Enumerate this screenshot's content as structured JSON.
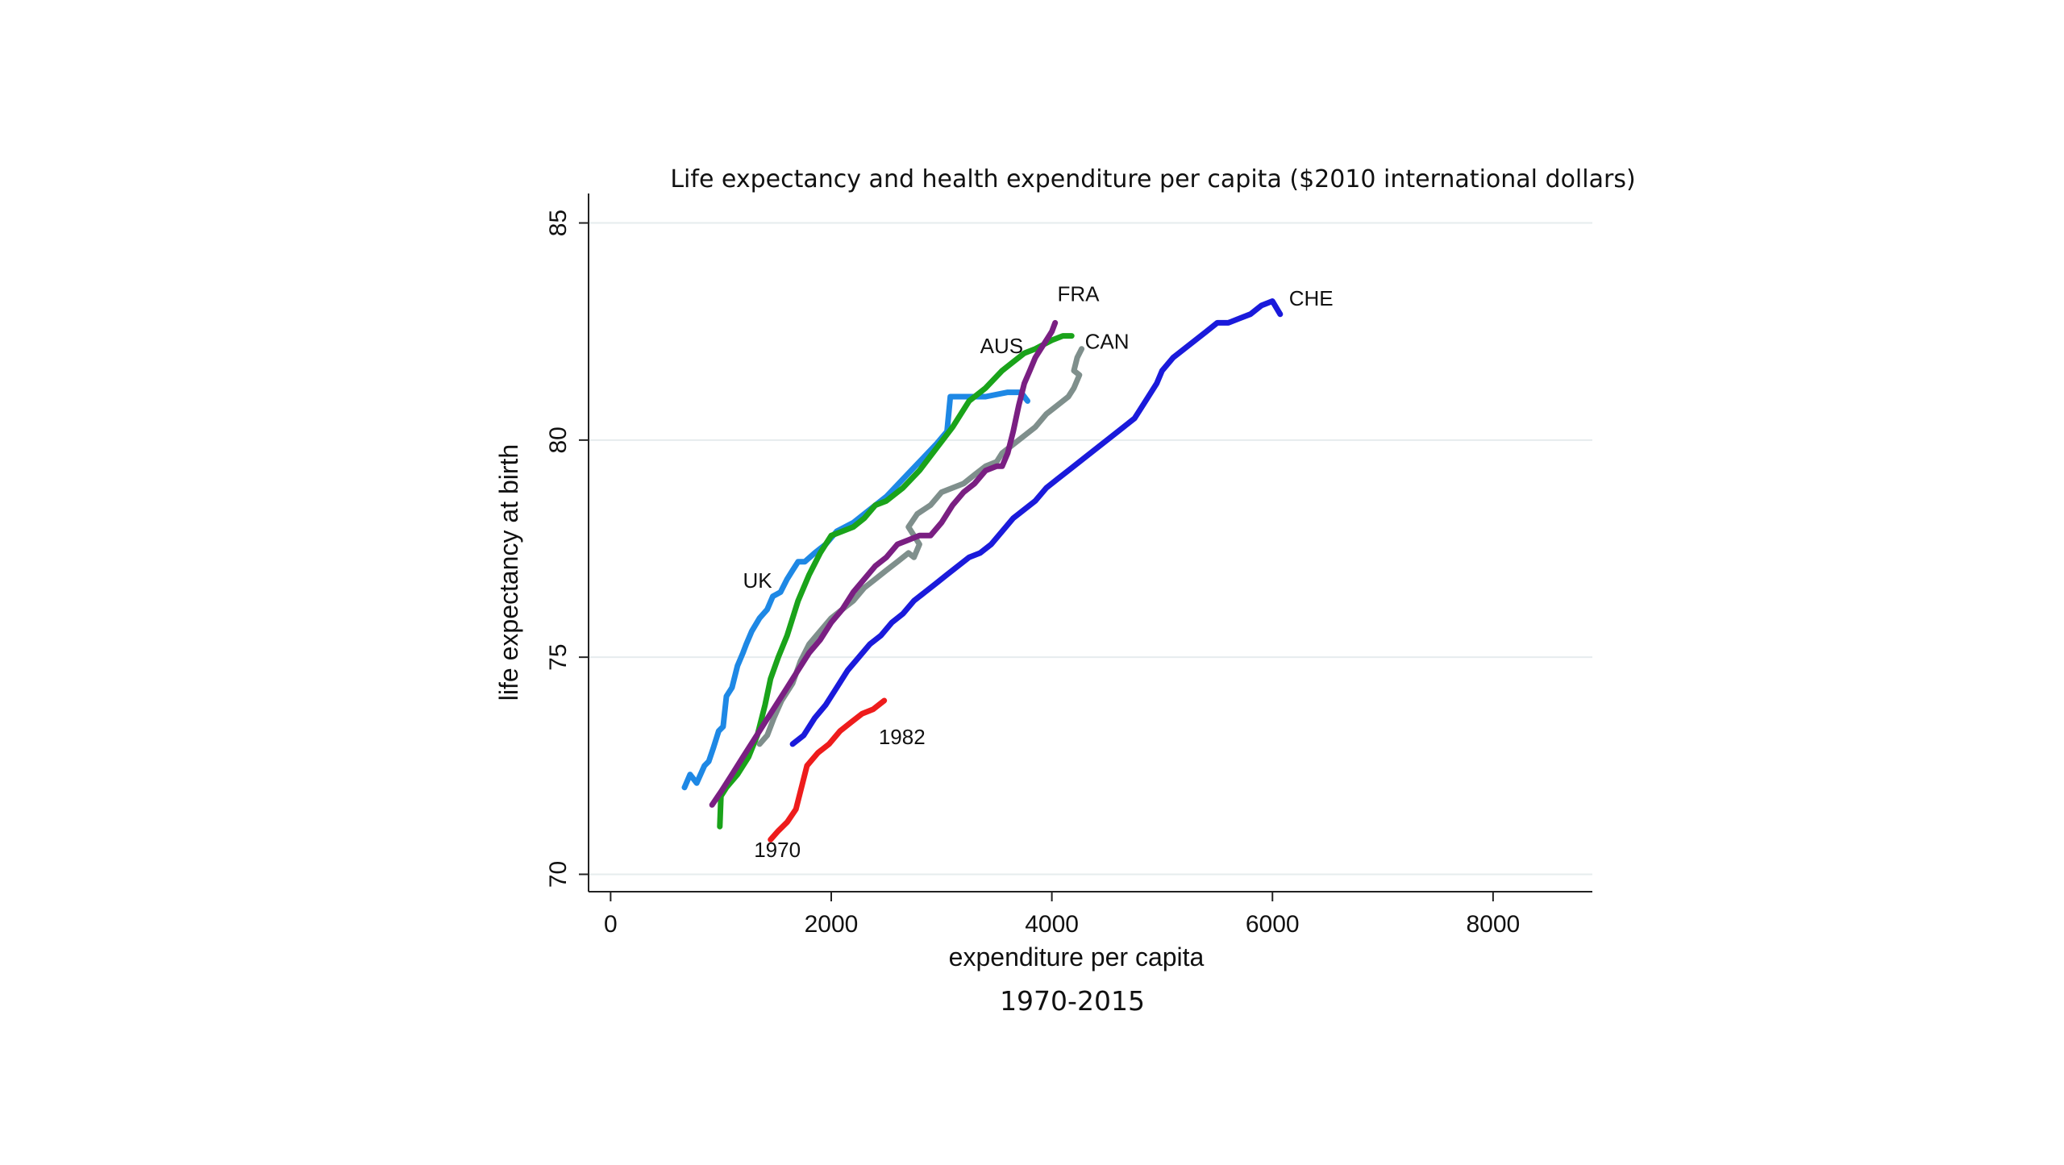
{
  "chart_data": {
    "type": "line",
    "title": "Life expectancy and health expenditure per capita ($2010 international dollars)",
    "xlabel": "expenditure per capita",
    "ylabel": "life expectancy at birth",
    "subtitle": "1970-2015",
    "xlim": [
      -200,
      8900
    ],
    "ylim": [
      69.6,
      85.4
    ],
    "xticks": [
      "0",
      "2000",
      "4000",
      "6000",
      "8000"
    ],
    "xtick_values": [
      0,
      2000,
      4000,
      6000,
      8000
    ],
    "yticks": [
      "70",
      "75",
      "80",
      "85"
    ],
    "ytick_values": [
      70,
      75,
      80,
      85
    ],
    "grid": true,
    "series": [
      {
        "name": "UK",
        "color": "#1e88e5",
        "x": [
          670,
          720,
          780,
          850,
          890,
          930,
          980,
          1020,
          1050,
          1100,
          1150,
          1200,
          1230,
          1280,
          1350,
          1420,
          1470,
          1540,
          1600,
          1650,
          1700,
          1760,
          1850,
          1950,
          2050,
          2200,
          2350,
          2500,
          2650,
          2800,
          2950,
          3050,
          3080,
          3200,
          3400,
          3600,
          3720,
          3780
        ],
        "y": [
          72.0,
          72.3,
          72.1,
          72.5,
          72.6,
          72.9,
          73.3,
          73.4,
          74.1,
          74.3,
          74.8,
          75.1,
          75.3,
          75.6,
          75.9,
          76.1,
          76.4,
          76.5,
          76.8,
          77.0,
          77.2,
          77.2,
          77.4,
          77.6,
          77.9,
          78.1,
          78.4,
          78.7,
          79.1,
          79.5,
          79.9,
          80.2,
          81.0,
          81.0,
          81.0,
          81.1,
          81.1,
          80.9
        ]
      },
      {
        "name": "AUS",
        "color": "#1aa31a",
        "x": [
          990,
          1000,
          1050,
          1150,
          1250,
          1330,
          1400,
          1450,
          1520,
          1600,
          1700,
          1800,
          1900,
          2000,
          2100,
          2200,
          2300,
          2400,
          2500,
          2650,
          2800,
          2950,
          3100,
          3250,
          3400,
          3550,
          3650,
          3750,
          3850,
          4000,
          4100,
          4180
        ],
        "y": [
          71.1,
          71.8,
          72.0,
          72.3,
          72.7,
          73.2,
          73.9,
          74.5,
          75.0,
          75.5,
          76.3,
          76.9,
          77.4,
          77.8,
          77.9,
          78.0,
          78.2,
          78.5,
          78.6,
          78.9,
          79.3,
          79.8,
          80.3,
          80.9,
          81.2,
          81.6,
          81.8,
          82.0,
          82.1,
          82.3,
          82.4,
          82.4
        ]
      },
      {
        "name": "CAN",
        "color": "#7f8f8c",
        "x": [
          1350,
          1420,
          1480,
          1550,
          1650,
          1720,
          1800,
          1900,
          2000,
          2100,
          2200,
          2300,
          2400,
          2500,
          2600,
          2700,
          2750,
          2800,
          2700,
          2780,
          2900,
          3000,
          3100,
          3200,
          3300,
          3400,
          3500,
          3550,
          3650,
          3750,
          3850,
          3950,
          4050,
          4150,
          4200,
          4250,
          4200,
          4230,
          4270
        ],
        "y": [
          73.0,
          73.2,
          73.6,
          74.0,
          74.4,
          74.9,
          75.3,
          75.6,
          75.9,
          76.1,
          76.3,
          76.6,
          76.8,
          77.0,
          77.2,
          77.4,
          77.3,
          77.6,
          78.0,
          78.3,
          78.5,
          78.8,
          78.9,
          79.0,
          79.2,
          79.4,
          79.5,
          79.7,
          79.9,
          80.1,
          80.3,
          80.6,
          80.8,
          81.0,
          81.2,
          81.5,
          81.6,
          81.9,
          82.1
        ]
      },
      {
        "name": "FRA",
        "color": "#7a1f82",
        "x": [
          920,
          1000,
          1100,
          1200,
          1300,
          1400,
          1500,
          1600,
          1700,
          1800,
          1900,
          2000,
          2100,
          2200,
          2300,
          2400,
          2500,
          2600,
          2700,
          2800,
          2900,
          3000,
          3100,
          3200,
          3300,
          3400,
          3500,
          3550,
          3600,
          3650,
          3700,
          3750,
          3800,
          3850,
          3900,
          3950,
          4000,
          4030
        ],
        "y": [
          71.6,
          71.9,
          72.3,
          72.7,
          73.1,
          73.5,
          73.9,
          74.3,
          74.7,
          75.1,
          75.4,
          75.8,
          76.1,
          76.5,
          76.8,
          77.1,
          77.3,
          77.6,
          77.7,
          77.8,
          77.8,
          78.1,
          78.5,
          78.8,
          79.0,
          79.3,
          79.4,
          79.4,
          79.7,
          80.2,
          80.8,
          81.3,
          81.6,
          81.9,
          82.1,
          82.3,
          82.5,
          82.7
        ]
      },
      {
        "name": "CHE",
        "color": "#1a1adb",
        "x": [
          1650,
          1750,
          1850,
          1950,
          2050,
          2150,
          2250,
          2350,
          2450,
          2550,
          2650,
          2750,
          2850,
          2950,
          3050,
          3150,
          3250,
          3350,
          3450,
          3550,
          3650,
          3750,
          3850,
          3950,
          4050,
          4150,
          4300,
          4450,
          4600,
          4750,
          4850,
          4950,
          5000,
          5100,
          5200,
          5300,
          5400,
          5500,
          5600,
          5700,
          5800,
          5900,
          6000,
          6070
        ],
        "y": [
          73.0,
          73.2,
          73.6,
          73.9,
          74.3,
          74.7,
          75.0,
          75.3,
          75.5,
          75.8,
          76.0,
          76.3,
          76.5,
          76.7,
          76.9,
          77.1,
          77.3,
          77.4,
          77.6,
          77.9,
          78.2,
          78.4,
          78.6,
          78.9,
          79.1,
          79.3,
          79.6,
          79.9,
          80.2,
          80.5,
          80.9,
          81.3,
          81.6,
          81.9,
          82.1,
          82.3,
          82.5,
          82.7,
          82.7,
          82.8,
          82.9,
          83.1,
          83.2,
          82.9
        ]
      },
      {
        "name": "1970-1982",
        "color": "#ee1c1c",
        "x": [
          1450,
          1520,
          1600,
          1680,
          1780,
          1880,
          1980,
          2080,
          2180,
          2280,
          2380,
          2480
        ],
        "y": [
          70.8,
          71.0,
          71.2,
          71.5,
          72.5,
          72.8,
          73.0,
          73.3,
          73.5,
          73.7,
          73.8,
          74.0
        ]
      }
    ],
    "annotations": [
      {
        "text": "UK",
        "x": 1200,
        "y": 76.6
      },
      {
        "text": "AUS",
        "x": 3350,
        "y": 82.0
      },
      {
        "text": "FRA",
        "x": 4050,
        "y": 83.2
      },
      {
        "text": "CAN",
        "x": 4300,
        "y": 82.1
      },
      {
        "text": "CHE",
        "x": 6150,
        "y": 83.1
      },
      {
        "text": "1982",
        "x": 2430,
        "y": 73.0
      },
      {
        "text": "1970",
        "x": 1300,
        "y": 70.4
      }
    ]
  }
}
